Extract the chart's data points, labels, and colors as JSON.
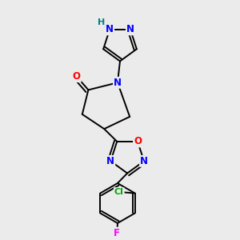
{
  "background_color": "#ebebeb",
  "bond_color": "#000000",
  "atom_colors": {
    "N": "#0000ff",
    "O": "#ff0000",
    "Cl": "#00aa00",
    "F": "#ff00ff",
    "H": "#008080",
    "C": "#000000"
  },
  "lw": 1.4,
  "fs": 8.5
}
